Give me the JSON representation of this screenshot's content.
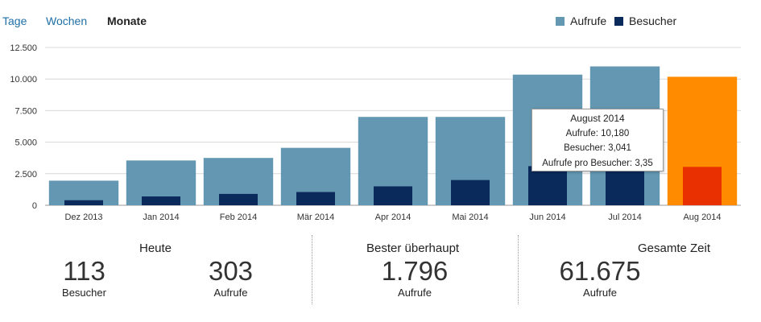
{
  "tabs": [
    {
      "label": "Tage",
      "active": false
    },
    {
      "label": "Wochen",
      "active": false
    },
    {
      "label": "Monate",
      "active": true
    }
  ],
  "legend": {
    "items": [
      {
        "label": "Aufrufe",
        "color": "#6497b1"
      },
      {
        "label": "Besucher",
        "color": "#0a2a5c"
      }
    ]
  },
  "chart_data": {
    "type": "bar",
    "categories": [
      "Dez 2013",
      "Jan 2014",
      "Feb 2014",
      "Mär 2014",
      "Apr 2014",
      "Mai 2014",
      "Jun 2014",
      "Jul 2014",
      "Aug 2014"
    ],
    "series": [
      {
        "name": "Aufrufe",
        "values": [
          1950,
          3550,
          3750,
          4550,
          7000,
          7000,
          10350,
          11000,
          10180
        ]
      },
      {
        "name": "Besucher",
        "values": [
          400,
          700,
          900,
          1050,
          1500,
          2000,
          3100,
          2800,
          3041
        ]
      }
    ],
    "ylim": [
      0,
      12500
    ],
    "yticks": [
      "0",
      "2.500",
      "5.000",
      "7.500",
      "10.000",
      "12.500"
    ],
    "ytick_values": [
      0,
      2500,
      5000,
      7500,
      10000,
      12500
    ],
    "grid": true,
    "legend_position": "top-right",
    "highlight_index": 8,
    "colors": {
      "aufrufe": "#6497b1",
      "besucher": "#0a2a5c",
      "highlight_aufrufe": "#ff8c00",
      "highlight_besucher": "#e83000"
    }
  },
  "tooltip": {
    "title": "August 2014",
    "line1": "Aufrufe: 10,180",
    "line2": "Besucher: 3,041",
    "line3": "Aufrufe pro Besucher: 3,35"
  },
  "stats": {
    "today": {
      "heading": "Heute",
      "visitors_value": "113",
      "visitors_label": "Besucher",
      "views_value": "303",
      "views_label": "Aufrufe"
    },
    "best": {
      "heading": "Bester überhaupt",
      "value": "1.796",
      "label": "Aufrufe"
    },
    "total": {
      "heading": "Gesamte Zeit",
      "value": "61.675",
      "label": "Aufrufe"
    }
  }
}
